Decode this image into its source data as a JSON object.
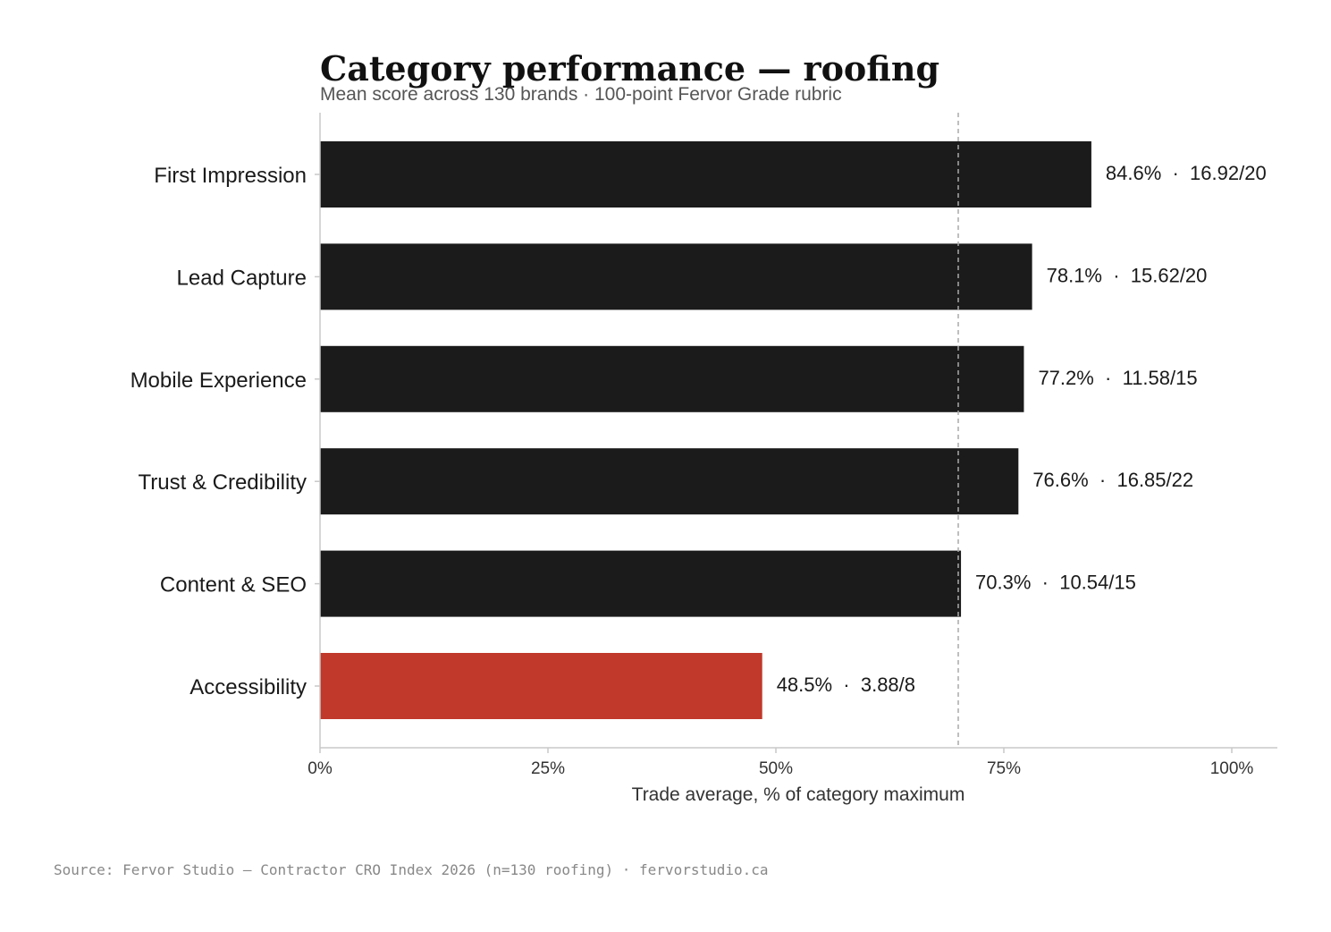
{
  "colors": {
    "bar_default": "#1b1b1b",
    "bar_highlight": "#c0392b",
    "reference_line": "#aaaaaa",
    "axis": "#c8c8c8"
  },
  "chart_data": {
    "type": "bar",
    "orientation": "horizontal",
    "title": "Category performance — roofing",
    "subtitle": "Mean score across 130 brands · 100-point Fervor Grade rubric",
    "xlabel": "Trade average, % of category maximum",
    "xlim": [
      0,
      105
    ],
    "xticks": [
      0,
      25,
      50,
      75,
      100
    ],
    "xtick_labels": [
      "0%",
      "25%",
      "50%",
      "75%",
      "100%"
    ],
    "reference_line": 70,
    "grid": false,
    "categories": [
      "First Impression",
      "Lead Capture",
      "Mobile Experience",
      "Trust & Credibility",
      "Content & SEO",
      "Accessibility"
    ],
    "values": [
      84.6,
      78.1,
      77.2,
      76.6,
      70.3,
      48.5
    ],
    "value_labels": [
      "84.6%  ·  16.92/20",
      "78.1%  ·  15.62/20",
      "77.2%  ·  11.58/15",
      "76.6%  ·  16.85/22",
      "70.3%  ·  10.54/15",
      "48.5%  ·  3.88/8"
    ],
    "highlight": [
      false,
      false,
      false,
      false,
      false,
      true
    ]
  },
  "footer": {
    "source": "Source: Fervor Studio — Contractor CRO Index 2026 (n=130 roofing) · fervorstudio.ca"
  }
}
